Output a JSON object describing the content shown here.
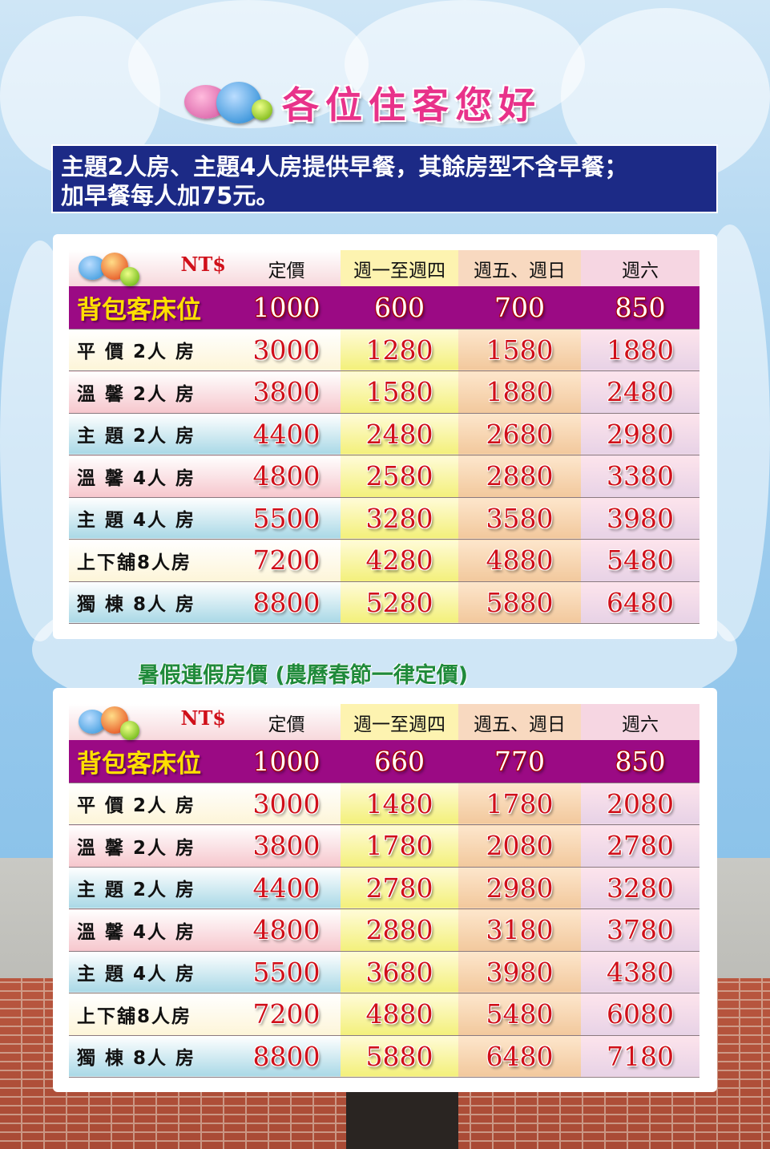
{
  "title": "各位住客您好",
  "notice": {
    "line1": "主題2人房、主題4人房提供早餐，其餘房型不含早餐；",
    "line2": "加早餐每人加75元。"
  },
  "header": {
    "currency": "NT$",
    "columns": [
      "定價",
      "週一至週四",
      "週五、週日",
      "週六"
    ]
  },
  "colors": {
    "banner": "#1c2a86",
    "title": "#e8328a",
    "backpacker_row": "#9b0a84",
    "price": "#d0101a",
    "subtitle": "#1f8a3a"
  },
  "tables": [
    {
      "rows": [
        {
          "room": "背包客床位",
          "prices": [
            "1000",
            "600",
            "700",
            "850"
          ]
        },
        {
          "room": "平 價 2人 房",
          "prices": [
            "3000",
            "1280",
            "1580",
            "1880"
          ]
        },
        {
          "room": "溫 馨 2人 房",
          "prices": [
            "3800",
            "1580",
            "1880",
            "2480"
          ]
        },
        {
          "room": "主 題 2人 房",
          "prices": [
            "4400",
            "2480",
            "2680",
            "2980"
          ]
        },
        {
          "room": "溫 馨 4人 房",
          "prices": [
            "4800",
            "2580",
            "2880",
            "3380"
          ]
        },
        {
          "room": "主 題 4人 房",
          "prices": [
            "5500",
            "3280",
            "3580",
            "3980"
          ]
        },
        {
          "room": "上下舖8人房",
          "prices": [
            "7200",
            "4280",
            "4880",
            "5480"
          ]
        },
        {
          "room": "獨 棟 8人 房",
          "prices": [
            "8800",
            "5280",
            "5880",
            "6480"
          ]
        }
      ]
    },
    {
      "subtitle": "暑假連假房價 (農曆春節一律定價)",
      "rows": [
        {
          "room": "背包客床位",
          "prices": [
            "1000",
            "660",
            "770",
            "850"
          ]
        },
        {
          "room": "平 價 2人 房",
          "prices": [
            "3000",
            "1480",
            "1780",
            "2080"
          ]
        },
        {
          "room": "溫 馨 2人 房",
          "prices": [
            "3800",
            "1780",
            "2080",
            "2780"
          ]
        },
        {
          "room": "主 題 2人 房",
          "prices": [
            "4400",
            "2780",
            "2980",
            "3280"
          ]
        },
        {
          "room": "溫 馨 4人 房",
          "prices": [
            "4800",
            "2880",
            "3180",
            "3780"
          ]
        },
        {
          "room": "主 題 4人 房",
          "prices": [
            "5500",
            "3680",
            "3980",
            "4380"
          ]
        },
        {
          "room": "上下舖8人房",
          "prices": [
            "7200",
            "4880",
            "5480",
            "6080"
          ]
        },
        {
          "room": "獨 棟 8人 房",
          "prices": [
            "8800",
            "5880",
            "6480",
            "7180"
          ]
        }
      ]
    }
  ]
}
